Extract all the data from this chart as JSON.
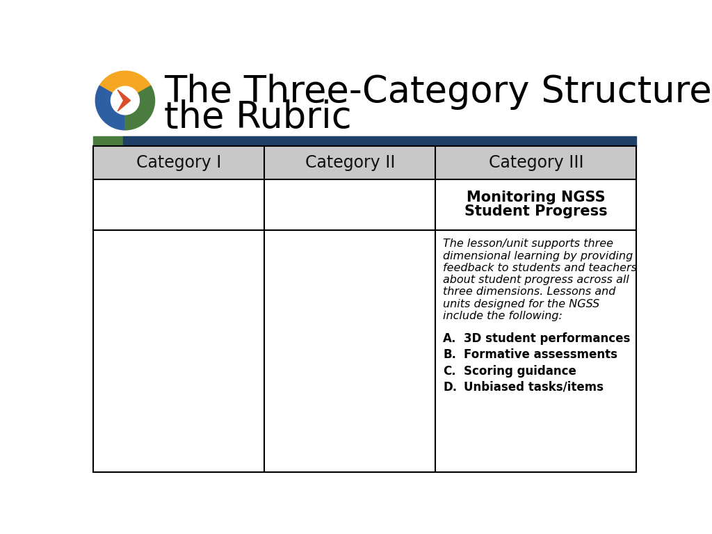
{
  "title_line1": "The Three-Category Structure of",
  "title_line2": "the Rubric",
  "title_fontsize": 38,
  "title_color": "#000000",
  "background_color": "#ffffff",
  "header_bar_color": "#1e3f66",
  "green_accent_color": "#4a7c3f",
  "header_bg_color": "#c8c8c8",
  "table_border_color": "#000000",
  "categories": [
    "Category I",
    "Category II",
    "Category III"
  ],
  "cat3_title_line1": "Monitoring NGSS",
  "cat3_title_line2": "Student Progress",
  "cat3_description_lines": [
    "The lesson/unit supports three",
    "dimensional learning by providing",
    "feedback to students and teachers",
    "about student progress across all",
    "three dimensions. Lessons and",
    "units designed for the NGSS",
    "include the following:"
  ],
  "cat3_items": [
    [
      "A.",
      "3D student performances"
    ],
    [
      "B.",
      "Formative assessments"
    ],
    [
      "C.",
      "Scoring guidance"
    ],
    [
      "D.",
      "Unbiased tasks/items"
    ]
  ],
  "logo_colors": [
    "#f5a623",
    "#2e5fa3",
    "#4a7c3f"
  ],
  "logo_arrow_color": "#d94f2b"
}
